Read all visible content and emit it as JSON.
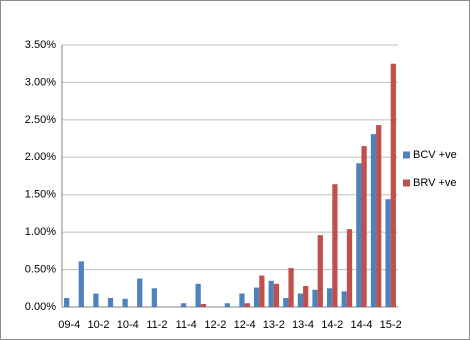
{
  "chart_data": {
    "type": "bar",
    "categories": [
      "09-4",
      null,
      "10-2",
      null,
      "10-4",
      null,
      "11-2",
      null,
      "11-4",
      null,
      "12-2",
      null,
      "12-4",
      null,
      "13-2",
      null,
      "13-4",
      null,
      "14-2",
      null,
      "14-4",
      null,
      "15-2"
    ],
    "series": [
      {
        "name": "BCV +ve",
        "color": "#4f81bd",
        "values": [
          0.12,
          0.61,
          0.18,
          0.12,
          0.11,
          0.38,
          0.25,
          0,
          0.05,
          0.31,
          0,
          0.05,
          0.18,
          0.26,
          0.35,
          0.12,
          0.18,
          0.23,
          0.25,
          0.21,
          1.92,
          2.31,
          1.44
        ]
      },
      {
        "name": "BRV +ve",
        "color": "#c0504d",
        "values": [
          0,
          0,
          0,
          0,
          0,
          0,
          0,
          0,
          0,
          0.04,
          0,
          0,
          0.05,
          0.42,
          0.31,
          0.52,
          0.28,
          0.96,
          1.64,
          1.04,
          2.15,
          2.43,
          3.25
        ]
      }
    ],
    "ylim": [
      0,
      3.5
    ],
    "yticks": [
      {
        "value": 0,
        "label": "0.00%"
      },
      {
        "value": 0.5,
        "label": "0.50%"
      },
      {
        "value": 1,
        "label": "1.00%"
      },
      {
        "value": 1.5,
        "label": "1.50%"
      },
      {
        "value": 2,
        "label": "2.00%"
      },
      {
        "value": 2.5,
        "label": "2.50%"
      },
      {
        "value": 3,
        "label": "3.00%"
      },
      {
        "value": 3.5,
        "label": "3.50%"
      }
    ],
    "grid": true,
    "legend": "right"
  }
}
